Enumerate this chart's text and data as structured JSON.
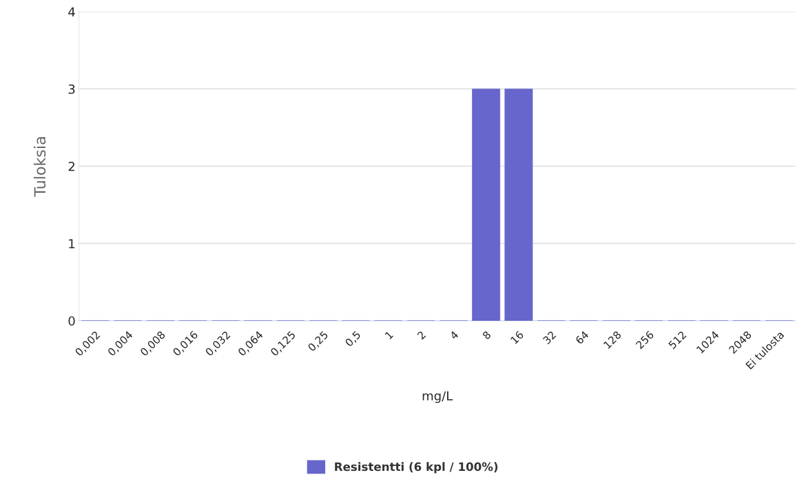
{
  "chart_data": {
    "type": "bar",
    "categories": [
      "0,002",
      "0,004",
      "0,008",
      "0,016",
      "0,032",
      "0,064",
      "0,125",
      "0,25",
      "0,5",
      "1",
      "2",
      "4",
      "8",
      "16",
      "32",
      "64",
      "128",
      "256",
      "512",
      "1024",
      "2048",
      "Ei tulosta"
    ],
    "series": [
      {
        "name": "Resistentti (6 kpl / 100%)",
        "color": "#6666cc",
        "values": [
          0,
          0,
          0,
          0,
          0,
          0,
          0,
          0,
          0,
          0,
          0,
          0,
          3,
          3,
          0,
          0,
          0,
          0,
          0,
          0,
          0,
          0
        ]
      }
    ],
    "xlabel": "mg/L",
    "ylabel": "Tuloksia",
    "ylim": [
      0,
      4
    ],
    "yticks": [
      0,
      1,
      2,
      3,
      4
    ],
    "grid": "y",
    "legend": "bottom"
  }
}
